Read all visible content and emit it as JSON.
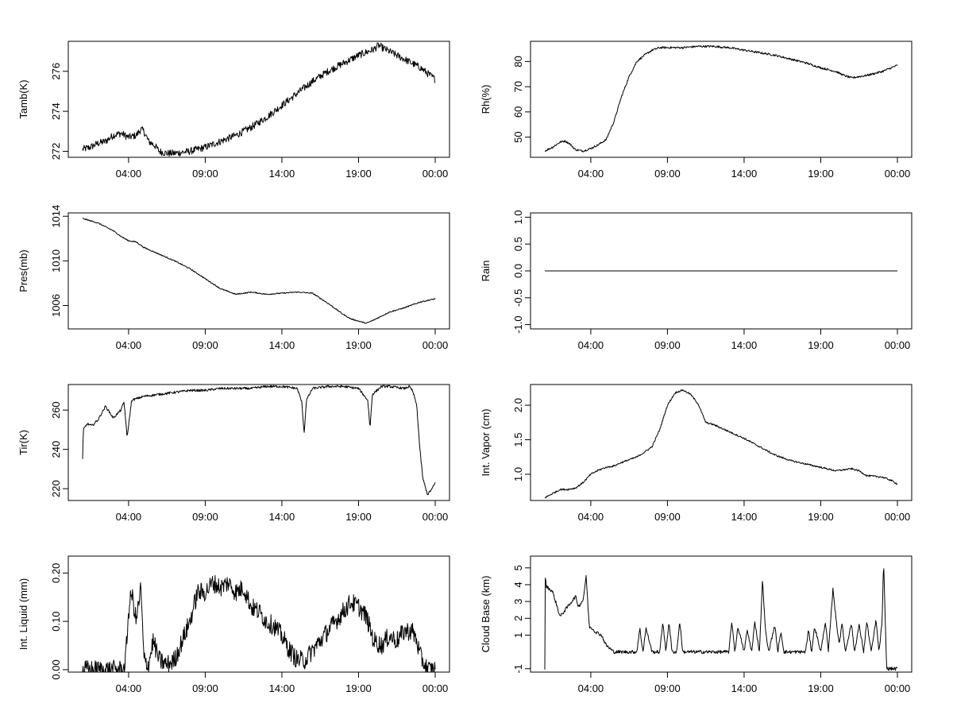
{
  "chart_data": [
    {
      "type": "line",
      "ylabel": "Tamb(K)",
      "xticks": [
        "04:00",
        "09:00",
        "14:00",
        "19:00",
        "00:00"
      ],
      "yticks": [
        "272",
        "274",
        "276"
      ],
      "ylim": [
        271.7,
        277.5
      ],
      "noise": 0.18,
      "series": [
        {
          "x": [
            1,
            1.5,
            2,
            2.5,
            3,
            3.5,
            4,
            4.5,
            4.8,
            5,
            5.3,
            5.7,
            6,
            6.5,
            7,
            8,
            9,
            10,
            11,
            12,
            13,
            14,
            15,
            16,
            17,
            18,
            19,
            20,
            20.3,
            20.5,
            21,
            22,
            23,
            24
          ],
          "y": [
            272.1,
            272.2,
            272.4,
            272.5,
            272.8,
            272.9,
            272.7,
            272.8,
            273.1,
            273.0,
            272.5,
            272.3,
            272.0,
            271.9,
            271.9,
            272.0,
            272.2,
            272.5,
            272.8,
            273.2,
            273.7,
            274.3,
            274.9,
            275.5,
            276.0,
            276.4,
            276.8,
            277.1,
            277.3,
            277.2,
            277.0,
            276.6,
            276.2,
            275.6
          ]
        }
      ]
    },
    {
      "type": "line",
      "ylabel": "Rh(%)",
      "xticks": [
        "04:00",
        "09:00",
        "14:00",
        "19:00",
        "00:00"
      ],
      "yticks": [
        "50",
        "60",
        "70",
        "80"
      ],
      "ylim": [
        42,
        88
      ],
      "noise": 0.4,
      "series": [
        {
          "x": [
            1,
            1.5,
            2,
            2.3,
            2.6,
            3,
            3.5,
            4,
            4.5,
            5,
            5.5,
            6,
            6.5,
            7,
            7.5,
            8,
            8.5,
            9,
            10,
            11,
            12,
            13,
            14,
            15,
            16,
            17,
            18,
            19,
            20,
            20.5,
            21,
            22,
            23,
            24
          ],
          "y": [
            44.5,
            46,
            48,
            48.5,
            47.5,
            45,
            44.5,
            45.5,
            47,
            49,
            56,
            66,
            74,
            80,
            82.5,
            84.5,
            85.5,
            85.5,
            85.5,
            86,
            86,
            85.5,
            84.5,
            83.5,
            82.5,
            81,
            79.5,
            77.5,
            76,
            74.5,
            73.5,
            74.5,
            76,
            78.5
          ]
        }
      ]
    },
    {
      "type": "line",
      "ylabel": "Pres(mb)",
      "xticks": [
        "04:00",
        "09:00",
        "14:00",
        "19:00",
        "00:00"
      ],
      "yticks": [
        "1006",
        "1010",
        "1014"
      ],
      "ylim": [
        1003.9,
        1014.3
      ],
      "noise": 0.05,
      "series": [
        {
          "x": [
            1,
            2,
            3,
            3.5,
            4,
            4.5,
            5,
            6,
            7,
            8,
            9,
            10,
            11,
            12,
            13,
            14,
            15,
            16,
            17,
            18,
            18.5,
            19,
            19.5,
            20,
            21,
            22,
            23,
            24
          ],
          "y": [
            1013.8,
            1013.4,
            1012.7,
            1012.2,
            1011.8,
            1011.7,
            1011.2,
            1010.6,
            1010.0,
            1009.3,
            1008.4,
            1007.5,
            1007.0,
            1007.2,
            1007.0,
            1007.1,
            1007.2,
            1007.1,
            1006.2,
            1005.2,
            1004.8,
            1004.6,
            1004.4,
            1004.7,
            1005.4,
            1005.8,
            1006.3,
            1006.6
          ]
        }
      ]
    },
    {
      "type": "line",
      "ylabel": "Rain",
      "xticks": [
        "04:00",
        "09:00",
        "14:00",
        "19:00",
        "00:00"
      ],
      "yticks": [
        "-1.0",
        "-0.5",
        "0.0",
        "0.5",
        "1.0"
      ],
      "ylim": [
        -1.08,
        1.08
      ],
      "noise": 0,
      "series": [
        {
          "x": [
            1,
            24
          ],
          "y": [
            0,
            0
          ]
        }
      ]
    },
    {
      "type": "line",
      "ylabel": "Tir(K)",
      "xticks": [
        "04:00",
        "09:00",
        "14:00",
        "19:00",
        "00:00"
      ],
      "yticks": [
        "220",
        "240",
        "260"
      ],
      "ylim": [
        214,
        273
      ],
      "noise": 0.6,
      "series": [
        {
          "x": [
            1,
            1.05,
            1.3,
            1.6,
            2,
            2.5,
            3,
            3.5,
            3.7,
            3.8,
            3.9,
            4.2,
            5,
            6,
            7,
            8,
            9,
            10,
            11,
            12,
            13,
            14,
            15,
            15.3,
            15.45,
            15.6,
            16,
            17,
            18,
            19,
            19.6,
            19.75,
            19.9,
            20.5,
            21,
            22,
            22.3,
            22.5,
            22.6,
            22.8,
            23,
            23.2,
            23.5,
            23.8,
            24
          ],
          "y": [
            235,
            250,
            253,
            252,
            255,
            262,
            256,
            260,
            264,
            256,
            246,
            265,
            267,
            268,
            269,
            270,
            270,
            271,
            271,
            271,
            272,
            272,
            271,
            264,
            248,
            265,
            271,
            272,
            272,
            271,
            265,
            251,
            268,
            272,
            272,
            271,
            272,
            270,
            268,
            262,
            240,
            225,
            217,
            220,
            223
          ]
        }
      ]
    },
    {
      "type": "line",
      "ylabel": "Int. Vapor (cm)",
      "xticks": [
        "04:00",
        "09:00",
        "14:00",
        "19:00",
        "00:00"
      ],
      "yticks": [
        "1.0",
        "1.5",
        "2.0"
      ],
      "ylim": [
        0.62,
        2.3
      ],
      "noise": 0.012,
      "series": [
        {
          "x": [
            1,
            1.5,
            2,
            2.5,
            3,
            3.5,
            4,
            4.5,
            5,
            5.5,
            6,
            7,
            7.5,
            8,
            8.5,
            9,
            9.5,
            10,
            10.5,
            11,
            11.5,
            12,
            13,
            14,
            15,
            16,
            17,
            18,
            19,
            20,
            21,
            21.5,
            22,
            23,
            23.5,
            24
          ],
          "y": [
            0.66,
            0.72,
            0.78,
            0.78,
            0.8,
            0.88,
            1.0,
            1.06,
            1.1,
            1.12,
            1.17,
            1.25,
            1.32,
            1.4,
            1.65,
            2.0,
            2.18,
            2.22,
            2.16,
            2.02,
            1.75,
            1.72,
            1.62,
            1.52,
            1.4,
            1.28,
            1.2,
            1.15,
            1.1,
            1.05,
            1.08,
            1.05,
            0.98,
            0.96,
            0.92,
            0.86
          ]
        }
      ]
    },
    {
      "type": "line",
      "ylabel": "Int. Liquid (mm)",
      "xticks": [
        "04:00",
        "09:00",
        "14:00",
        "19:00",
        "00:00"
      ],
      "yticks": [
        "0.00",
        "0.10",
        "0.20"
      ],
      "ylim": [
        -0.005,
        0.235
      ],
      "noise": 0.02,
      "series": [
        {
          "x": [
            1,
            2,
            3,
            3.7,
            3.8,
            4.0,
            4.2,
            4.5,
            4.8,
            5.0,
            5.3,
            5.6,
            6,
            6.5,
            7,
            7.5,
            8,
            8.5,
            9,
            9.5,
            10,
            10.5,
            11,
            11.5,
            12,
            12.5,
            13,
            13.5,
            14,
            14.5,
            15,
            15.5,
            16,
            16.5,
            17,
            17.5,
            18,
            18.5,
            19,
            19.5,
            20,
            20.5,
            21,
            21.5,
            22,
            22.5,
            22.8,
            23.0,
            23.5,
            24
          ],
          "y": [
            0,
            0,
            0,
            0,
            0.02,
            0.12,
            0.16,
            0.1,
            0.17,
            0.02,
            0.01,
            0.06,
            0.02,
            0.01,
            0.02,
            0.06,
            0.1,
            0.16,
            0.16,
            0.18,
            0.17,
            0.18,
            0.16,
            0.17,
            0.13,
            0.12,
            0.1,
            0.09,
            0.07,
            0.04,
            0.02,
            0.02,
            0.04,
            0.06,
            0.08,
            0.1,
            0.12,
            0.14,
            0.13,
            0.11,
            0.06,
            0.05,
            0.07,
            0.06,
            0.08,
            0.08,
            0.06,
            0.03,
            0,
            0
          ]
        }
      ]
    },
    {
      "type": "line",
      "ylabel": "Cloud Base (km)",
      "xticks": [
        "04:00",
        "09:00",
        "14:00",
        "19:00",
        "00:00"
      ],
      "yticks": [
        "-1",
        "1",
        "2",
        "3",
        "4",
        "5"
      ],
      "ylim": [
        -1.2,
        5.7
      ],
      "noise": 0.1,
      "series": [
        {
          "x": [
            1,
            1.02,
            1.1,
            1.5,
            2,
            2.5,
            3,
            3.2,
            3.5,
            3.7,
            3.9,
            4.1,
            4.3,
            4.7,
            5,
            5.5,
            6,
            6.5,
            7,
            7.2,
            7.4,
            7.6,
            8,
            8.5,
            8.7,
            8.9,
            9.1,
            9.3,
            9.6,
            9.8,
            10.0,
            10.2,
            10.5,
            11,
            11.5,
            12,
            12.5,
            13,
            13.2,
            13.4,
            13.6,
            14,
            14.2,
            14.5,
            14.7,
            15,
            15.2,
            15.4,
            15.6,
            16,
            16.2,
            16.4,
            16.6,
            17,
            17.5,
            18,
            18.2,
            18.4,
            18.6,
            19,
            19.3,
            19.5,
            19.8,
            20,
            20.2,
            20.4,
            20.6,
            21,
            21.2,
            21.5,
            21.8,
            22,
            22.3,
            22.6,
            22.8,
            23.0,
            23.1,
            23.3,
            23.5,
            24
          ],
          "y": [
            -1,
            4.5,
            3.9,
            3.6,
            2.1,
            2.7,
            3.3,
            2.7,
            3.1,
            4.5,
            1.5,
            1.4,
            1.2,
            1.0,
            0.4,
            0,
            0,
            0,
            0,
            1.4,
            0,
            1.4,
            0,
            0,
            1.8,
            0,
            1.8,
            0,
            0,
            1.8,
            0,
            0,
            0,
            0,
            0,
            0,
            0,
            0,
            1.8,
            0,
            1.5,
            0,
            1.3,
            0,
            1.8,
            0,
            4.3,
            1.2,
            0,
            1.6,
            0,
            1.2,
            0,
            0,
            0,
            0,
            1.3,
            0,
            1.5,
            0,
            1.8,
            0,
            3.8,
            1.9,
            0.5,
            1.7,
            0,
            1.7,
            0,
            1.6,
            0,
            1.8,
            0,
            1.9,
            0,
            1.8,
            5.3,
            -1,
            -1,
            -1
          ]
        }
      ]
    }
  ]
}
